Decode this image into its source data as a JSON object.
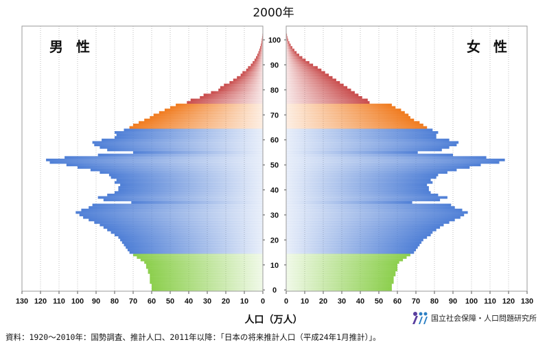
{
  "title": "2000年",
  "labels": {
    "male": "男 性",
    "female": "女 性"
  },
  "x_axis_label": "人口（万人）",
  "source": "資料：1920～2010年：国勢調査、推計人口、2011年以降：「日本の将来推計人口（平成24年1月推計）」。",
  "organization": "国立社会保障・人口問題研究所",
  "colors": {
    "age_0_14": "#8ccf4d",
    "age_15_64": "#4f7fd6",
    "age_65_74": "#f07b1f",
    "age_75_plus": "#c84b4b"
  },
  "chart_data": {
    "type": "bar",
    "orientation": "horizontal-pyramid",
    "title": "2000年",
    "xlabel": "人口（万人）",
    "x_ticks_male": [
      130,
      120,
      110,
      100,
      90,
      80,
      70,
      60,
      50,
      40,
      30,
      20,
      10,
      0
    ],
    "x_ticks_female": [
      0,
      10,
      20,
      30,
      40,
      50,
      60,
      70,
      80,
      90,
      100,
      110,
      120,
      130
    ],
    "y_ticks": [
      0,
      10,
      20,
      30,
      40,
      50,
      60,
      70,
      80,
      90,
      100
    ],
    "xlim": [
      0,
      130
    ],
    "ylim": [
      0,
      105
    ],
    "age_groups": [
      {
        "from": 0,
        "to": 14,
        "color_key": "age_0_14"
      },
      {
        "from": 15,
        "to": 64,
        "color_key": "age_15_64"
      },
      {
        "from": 65,
        "to": 74,
        "color_key": "age_65_74"
      },
      {
        "from": 75,
        "to": 105,
        "color_key": "age_75_plus"
      }
    ],
    "ages": [
      0,
      1,
      2,
      3,
      4,
      5,
      6,
      7,
      8,
      9,
      10,
      11,
      12,
      13,
      14,
      15,
      16,
      17,
      18,
      19,
      20,
      21,
      22,
      23,
      24,
      25,
      26,
      27,
      28,
      29,
      30,
      31,
      32,
      33,
      34,
      35,
      36,
      37,
      38,
      39,
      40,
      41,
      42,
      43,
      44,
      45,
      46,
      47,
      48,
      49,
      50,
      51,
      52,
      53,
      54,
      55,
      56,
      57,
      58,
      59,
      60,
      61,
      62,
      63,
      64,
      65,
      66,
      67,
      68,
      69,
      70,
      71,
      72,
      73,
      74,
      75,
      76,
      77,
      78,
      79,
      80,
      81,
      82,
      83,
      84,
      85,
      86,
      87,
      88,
      89,
      90,
      91,
      92,
      93,
      94,
      95,
      96,
      97,
      98,
      99,
      100,
      101,
      102,
      103,
      104,
      105
    ],
    "series": [
      {
        "name": "男 性",
        "values": [
          60,
          60,
          60,
          61,
          61,
          61,
          61,
          62,
          62,
          63,
          63,
          64,
          66,
          68,
          70,
          72,
          73,
          74,
          75,
          76,
          77,
          78,
          80,
          82,
          84,
          86,
          88,
          91,
          94,
          97,
          99,
          101,
          98,
          94,
          92,
          71,
          86,
          89,
          84,
          80,
          78,
          78,
          77,
          80,
          79,
          82,
          83,
          88,
          93,
          100,
          106,
          115,
          117,
          107,
          89,
          70,
          84,
          88,
          91,
          92,
          87,
          80,
          79,
          80,
          75,
          72,
          70,
          67,
          64,
          61,
          59,
          56,
          53,
          50,
          47,
          41,
          39,
          34,
          32,
          28,
          24,
          23,
          21,
          18,
          16,
          14,
          12,
          11,
          9,
          8,
          6.5,
          5.5,
          4.5,
          3.7,
          3,
          2.4,
          1.9,
          1.5,
          1.1,
          0.8,
          0.6,
          0.4,
          0.25,
          0.15,
          0.08,
          0.04
        ]
      },
      {
        "name": "女 性",
        "values": [
          57,
          57,
          57,
          58,
          58,
          58,
          59,
          59,
          60,
          60,
          60,
          61,
          63,
          65,
          67,
          69,
          70,
          71,
          72,
          73,
          74,
          76,
          78,
          79,
          81,
          83,
          85,
          88,
          91,
          94,
          96,
          98,
          95,
          91,
          89,
          68,
          83,
          87,
          82,
          78,
          77,
          77,
          76,
          79,
          78,
          81,
          82,
          87,
          92,
          99,
          105,
          115,
          118,
          108,
          90,
          71,
          84,
          88,
          92,
          93,
          88,
          81,
          81,
          82,
          79,
          76,
          74,
          72,
          69,
          67,
          66,
          64,
          62,
          59,
          57,
          45,
          44,
          41,
          39,
          37,
          35,
          33,
          31,
          29,
          27,
          25,
          23,
          21,
          19,
          17,
          14.5,
          12.5,
          10.5,
          8.7,
          7,
          5.6,
          4.4,
          3.3,
          2.4,
          1.7,
          1.1,
          0.7,
          0.4,
          0.2,
          0.1,
          0.05
        ]
      }
    ]
  }
}
